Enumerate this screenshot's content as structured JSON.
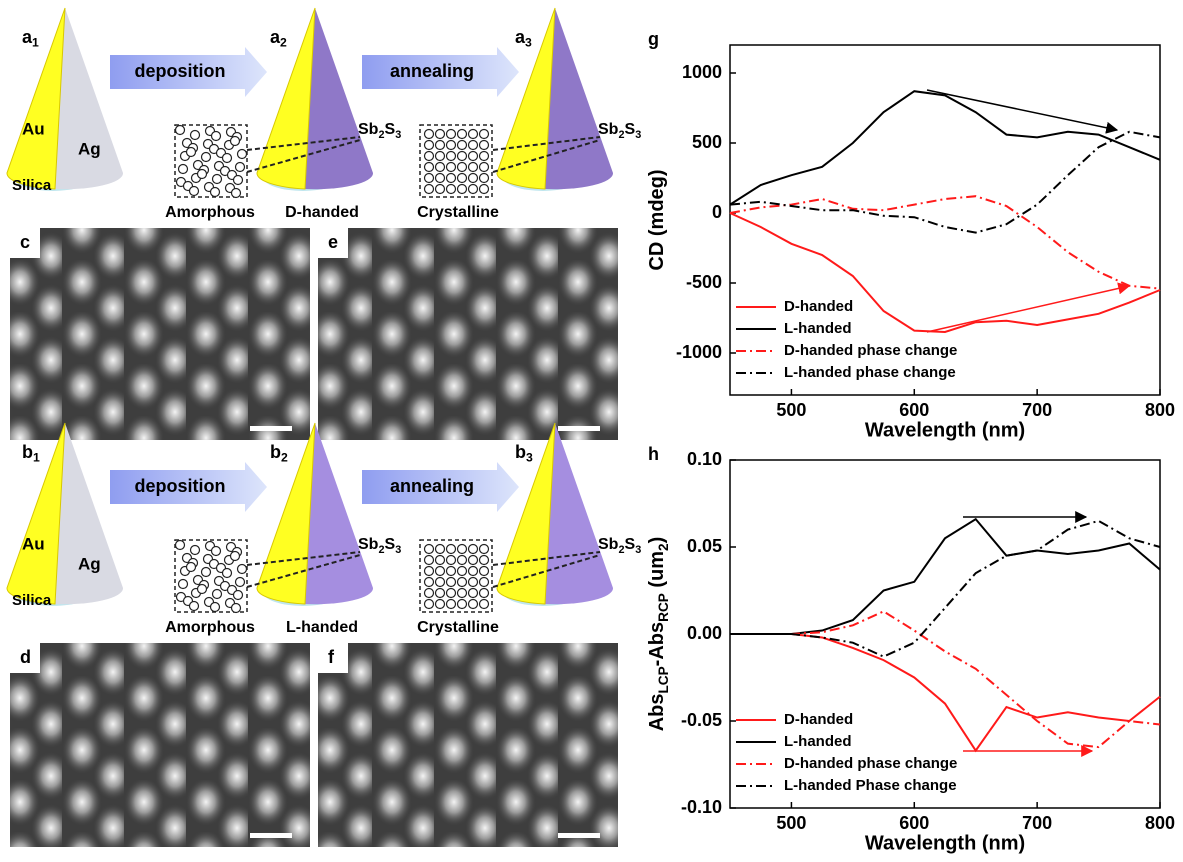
{
  "figure": {
    "rows": [
      {
        "panels": [
          {
            "letter": "a",
            "sub": "1"
          },
          {
            "letter": "a",
            "sub": "2"
          },
          {
            "letter": "a",
            "sub": "3"
          }
        ],
        "arrows": [
          "deposition",
          "annealing"
        ],
        "au": "Au",
        "ag": "Ag",
        "silica": "Silica",
        "sb": [
          [
            "Sb",
            "2",
            "S",
            "3"
          ],
          [
            "Sb",
            "2",
            "S",
            "3"
          ]
        ],
        "structures": [
          "Amorphous",
          "D-handed",
          "Crystalline"
        ],
        "sem_labels": [
          "c",
          "e"
        ]
      },
      {
        "panels": [
          {
            "letter": "b",
            "sub": "1"
          },
          {
            "letter": "b",
            "sub": "2"
          },
          {
            "letter": "b",
            "sub": "3"
          }
        ],
        "arrows": [
          "deposition",
          "annealing"
        ],
        "au": "Au",
        "ag": "Ag",
        "silica": "Silica",
        "sb": [
          [
            "Sb",
            "2",
            "S",
            "3"
          ],
          [
            "Sb",
            "2",
            "S",
            "3"
          ]
        ],
        "structures": [
          "Amorphous",
          "L-handed",
          "Crystalline"
        ],
        "sem_labels": [
          "d",
          "f"
        ]
      }
    ]
  },
  "chart_data": [
    {
      "type": "line",
      "panel": "g",
      "x_label": "Wavelength (nm)",
      "y_label": [
        "CD (mdeg)"
      ],
      "x": [
        450,
        475,
        500,
        525,
        550,
        575,
        600,
        625,
        650,
        675,
        700,
        725,
        750,
        775,
        800
      ],
      "xlim": [
        450,
        800
      ],
      "xticks": [
        500,
        600,
        700,
        800
      ],
      "ylim": [
        -1300,
        1200
      ],
      "yticks": [
        -1000,
        -500,
        0,
        500,
        1000
      ],
      "legend": "lower left",
      "series": [
        {
          "name": "D-handed",
          "color": "#ff1a1a",
          "dash": "solid",
          "values": [
            0,
            -100,
            -220,
            -300,
            -450,
            -700,
            -840,
            -850,
            -780,
            -770,
            -800,
            -760,
            -720,
            -640,
            -550
          ]
        },
        {
          "name": "L-handed",
          "color": "#000000",
          "dash": "solid",
          "values": [
            60,
            200,
            270,
            330,
            500,
            720,
            870,
            840,
            720,
            560,
            540,
            580,
            560,
            470,
            380
          ]
        },
        {
          "name": "D-handed phase change",
          "color": "#ff1a1a",
          "dash": "dashdot",
          "values": [
            0,
            40,
            60,
            100,
            30,
            20,
            60,
            100,
            120,
            50,
            -100,
            -280,
            -420,
            -520,
            -540
          ]
        },
        {
          "name": "L-handed phase change",
          "color": "#000000",
          "dash": "dashdot",
          "values": [
            60,
            80,
            50,
            20,
            20,
            -20,
            -30,
            -100,
            -140,
            -80,
            60,
            270,
            470,
            580,
            540
          ]
        }
      ]
    },
    {
      "type": "line",
      "panel": "h",
      "x_label": "Wavelength (nm)",
      "y_label": [
        "Abs",
        "LCP",
        "-Abs",
        "RCP",
        " (um",
        "2",
        ")"
      ],
      "x": [
        450,
        475,
        500,
        525,
        550,
        575,
        600,
        625,
        650,
        675,
        700,
        725,
        750,
        775,
        800
      ],
      "xlim": [
        450,
        800
      ],
      "xticks": [
        500,
        600,
        700,
        800
      ],
      "ylim": [
        -0.1,
        0.1
      ],
      "yticks": [
        {
          "value": -0.1,
          "label": "-0.10"
        },
        -0.05,
        {
          "value": 0,
          "label": "0.00"
        },
        0.05,
        {
          "value": 0.1,
          "label": "0.10"
        }
      ],
      "legend": "lower left",
      "series": [
        {
          "name": "D-handed",
          "color": "#ff1a1a",
          "dash": "solid",
          "values": [
            0,
            0,
            0,
            -0.002,
            -0.008,
            -0.015,
            -0.025,
            -0.04,
            -0.067,
            -0.042,
            -0.048,
            -0.045,
            -0.048,
            -0.05,
            -0.036
          ]
        },
        {
          "name": "L-handed",
          "color": "#000000",
          "dash": "solid",
          "values": [
            0,
            0,
            0,
            0.002,
            0.008,
            0.025,
            0.03,
            0.055,
            0.066,
            0.045,
            0.048,
            0.046,
            0.048,
            0.052,
            0.037
          ]
        },
        {
          "name": "D-handed phase change",
          "color": "#ff1a1a",
          "dash": "dashdot",
          "values": [
            0,
            0,
            0,
            0.001,
            0.005,
            0.013,
            0.002,
            -0.01,
            -0.02,
            -0.035,
            -0.05,
            -0.063,
            -0.065,
            -0.05,
            -0.052
          ]
        },
        {
          "name": "L-handed Phase change",
          "color": "#000000",
          "dash": "dashdot",
          "values": [
            0,
            0,
            0,
            -0.002,
            -0.005,
            -0.013,
            -0.005,
            0.015,
            0.035,
            0.045,
            0.048,
            0.06,
            0.065,
            0.055,
            0.05
          ]
        }
      ]
    }
  ]
}
